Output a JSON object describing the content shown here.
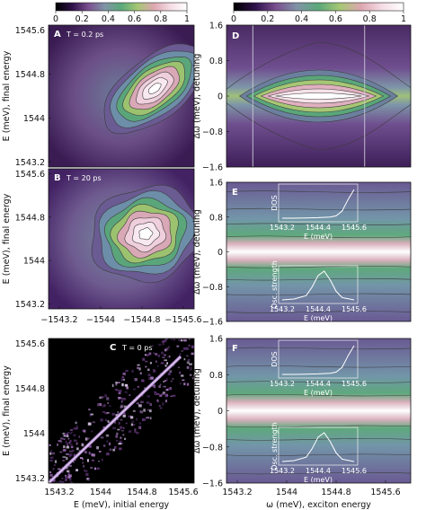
{
  "colorbar": {
    "ticks": [
      "0",
      "0.2",
      "0.4",
      "0.6",
      "0.8",
      "1"
    ],
    "gradient": [
      "#000000",
      "#2d1148",
      "#7a4f8f",
      "#7f94a6",
      "#5ba879",
      "#a6c774",
      "#dda7b2",
      "#f5dde6",
      "#ffffff"
    ]
  },
  "chart_data": [
    {
      "type": "heatmap",
      "panel": "A",
      "annotation": "T = 0.2 ps",
      "xlabel": "",
      "ylabel": "E (meV), final energy",
      "xlim": [
        1543.2,
        1545.6
      ],
      "ylim": [
        1543.2,
        1546.0
      ],
      "yticks": [
        "1545.6",
        "1544.8",
        "1544",
        "1543.2"
      ],
      "xticks": [],
      "peak": {
        "x": 1544.95,
        "y": 1544.75
      },
      "grid": false
    },
    {
      "type": "heatmap",
      "panel": "B",
      "annotation": "T = 20 ps",
      "xlabel": "",
      "ylabel": "E (meV), final energy",
      "xlim": [
        1543.2,
        1545.6
      ],
      "ylim": [
        1543.2,
        1546.0
      ],
      "yticks": [
        "1545.6",
        "1544.8",
        "1544",
        "1543.2"
      ],
      "xticks": [
        "−1543.2",
        "−1544",
        "−1544.8",
        "−1545.6"
      ],
      "peak": {
        "x": 1544.8,
        "y": 1544.7
      },
      "grid": false
    },
    {
      "type": "heatmap",
      "panel": "C",
      "annotation": "T = 0 ps",
      "xlabel": "E (meV), initial energy",
      "ylabel": "E (meV), final energy",
      "xlim": [
        1543.2,
        1545.9
      ],
      "ylim": [
        1543.2,
        1546.0
      ],
      "xticks": [
        "1543.2",
        "1544",
        "1544.8",
        "1545.6"
      ],
      "yticks": [
        "1545.6",
        "1544.8",
        "1544",
        "1543.2"
      ],
      "diagonal": {
        "from": [
          1543.2,
          1543.2
        ],
        "to": [
          1545.65,
          1545.65
        ]
      },
      "grid": false
    },
    {
      "type": "heatmap",
      "panel": "D",
      "annotation": "",
      "xlabel": "",
      "ylabel": "Δω (meV), detuning",
      "xlim": [
        1543.2,
        1546.0
      ],
      "ylim": [
        -1.6,
        1.6
      ],
      "yticks": [
        "1.6",
        "0.8",
        "0",
        "−0.8",
        "−1.6"
      ],
      "xticks": [],
      "guide_lines_x": [
        1543.6,
        1545.3
      ],
      "peak": {
        "x": 1544.6,
        "y": 0.0
      },
      "grid": false
    },
    {
      "type": "heatmap",
      "panel": "E",
      "annotation": "",
      "xlabel": "",
      "ylabel": "Δω (meV), detuning",
      "xlim": [
        1543.2,
        1546.0
      ],
      "ylim": [
        -1.6,
        1.6
      ],
      "yticks": [
        "1.6",
        "0.8",
        "0",
        "−0.8",
        "−1.6"
      ],
      "xticks": [],
      "insets": [
        {
          "type": "line",
          "label": "DOS",
          "xlabel": "E (meV)",
          "xticks": [
            "1543.2",
            "1544.4",
            "1545.6"
          ],
          "x": [
            1543.2,
            1543.6,
            1544.0,
            1544.4,
            1544.8,
            1545.0,
            1545.2,
            1545.4,
            1545.6
          ],
          "y": [
            0.0,
            0.0,
            0.01,
            0.02,
            0.04,
            0.08,
            0.25,
            0.65,
            1.0
          ]
        },
        {
          "type": "line",
          "label": "Osc. strength",
          "xlabel": "E (meV)",
          "xticks": [
            "1543.2",
            "1544.4",
            "1545.6"
          ],
          "x": [
            1543.2,
            1543.6,
            1544.0,
            1544.2,
            1544.4,
            1544.6,
            1544.8,
            1545.0,
            1545.2,
            1545.6
          ],
          "y": [
            0.0,
            0.03,
            0.15,
            0.45,
            0.85,
            1.0,
            0.7,
            0.3,
            0.08,
            0.0
          ]
        }
      ],
      "grid": false
    },
    {
      "type": "heatmap",
      "panel": "F",
      "annotation": "",
      "xlabel": "ω (meV), exciton energy",
      "ylabel": "Δω (meV), detuning",
      "xlim": [
        1543.2,
        1546.0
      ],
      "ylim": [
        -1.6,
        1.6
      ],
      "yticks": [
        "1.6",
        "0.8",
        "0",
        "−0.8",
        "−1.6"
      ],
      "xticks": [
        "1543.2",
        "1544",
        "1544.8",
        "1545.6"
      ],
      "insets": [
        {
          "type": "line",
          "label": "DOS",
          "xlabel": "E (meV)",
          "xticks": [
            "1543.2",
            "1544.4",
            "1545.6"
          ],
          "x": [
            1543.2,
            1543.6,
            1544.0,
            1544.4,
            1544.8,
            1545.0,
            1545.2,
            1545.4,
            1545.6
          ],
          "y": [
            0.0,
            0.0,
            0.01,
            0.02,
            0.04,
            0.08,
            0.25,
            0.65,
            1.0
          ]
        },
        {
          "type": "line",
          "label": "Osc. strength",
          "xlabel": "E (meV)",
          "xticks": [
            "1543.2",
            "1544.4",
            "1545.6"
          ],
          "x": [
            1543.2,
            1543.6,
            1544.0,
            1544.2,
            1544.4,
            1544.6,
            1544.8,
            1545.0,
            1545.2,
            1545.6
          ],
          "y": [
            0.0,
            0.03,
            0.15,
            0.45,
            0.85,
            1.0,
            0.7,
            0.3,
            0.08,
            0.0
          ]
        }
      ],
      "grid": false
    }
  ]
}
